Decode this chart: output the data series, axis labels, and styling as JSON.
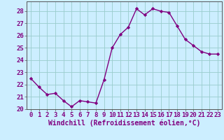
{
  "x": [
    0,
    1,
    2,
    3,
    4,
    5,
    6,
    7,
    8,
    9,
    10,
    11,
    12,
    13,
    14,
    15,
    16,
    17,
    18,
    19,
    20,
    21,
    22,
    23
  ],
  "y": [
    22.5,
    21.8,
    21.2,
    21.3,
    20.7,
    20.2,
    20.7,
    20.6,
    20.5,
    22.4,
    25.0,
    26.1,
    26.7,
    28.2,
    27.7,
    28.2,
    28.0,
    27.9,
    26.8,
    25.7,
    25.2,
    24.7,
    24.5,
    24.5
  ],
  "xlabel": "Windchill (Refroidissement éolien,°C)",
  "xlim": [
    -0.5,
    23.5
  ],
  "ylim": [
    20,
    28.8
  ],
  "yticks": [
    20,
    21,
    22,
    23,
    24,
    25,
    26,
    27,
    28
  ],
  "xticks": [
    0,
    1,
    2,
    3,
    4,
    5,
    6,
    7,
    8,
    9,
    10,
    11,
    12,
    13,
    14,
    15,
    16,
    17,
    18,
    19,
    20,
    21,
    22,
    23
  ],
  "line_color": "#800080",
  "marker": "D",
  "marker_size": 2.2,
  "bg_color": "#cceeff",
  "grid_color": "#99cccc",
  "xlabel_fontsize": 7,
  "tick_fontsize": 6.5,
  "line_width": 1.0
}
